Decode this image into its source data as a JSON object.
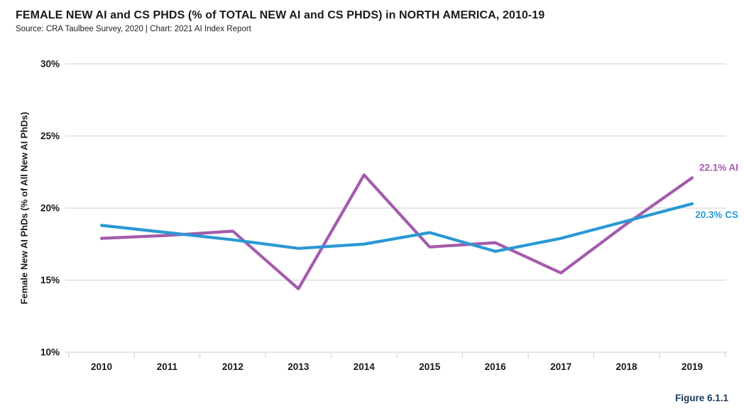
{
  "header": {
    "title": "FEMALE NEW AI and CS PHDS (% of TOTAL NEW AI and CS PHDS) in NORTH AMERICA, 2010-19",
    "source": "Source: CRA Taulbee Survey, 2020 | Chart: 2021 AI Index Report"
  },
  "footer": {
    "figure_label": "Figure 6.1.1"
  },
  "colors": {
    "ai_line": "#A45BAC",
    "cs_line": "#2B98D4",
    "grid": "#D8D8D8",
    "tick": "#D8D8D8",
    "axis_text": "#1A1A1A",
    "figure_label": "#1B3A5C",
    "background": "#FFFFFF"
  },
  "chart_data": {
    "type": "line",
    "title": "FEMALE NEW AI and CS PHDS (% of TOTAL NEW AI and CS PHDS) in NORTH AMERICA, 2010-19",
    "xlabel": "",
    "ylabel": "Female New AI PhDs (% of All New AI PhDs)",
    "x": [
      2010,
      2011,
      2012,
      2013,
      2014,
      2015,
      2016,
      2017,
      2018,
      2019
    ],
    "ylim": [
      10,
      30
    ],
    "yticks": [
      10,
      15,
      20,
      25,
      30
    ],
    "ytick_labels": [
      "10%",
      "15%",
      "20%",
      "25%",
      "30%"
    ],
    "grid": "horizontal",
    "legend_position": "line-end-labels",
    "series": [
      {
        "name": "AI",
        "color": "#A45BAC",
        "values": [
          17.9,
          18.1,
          18.4,
          14.4,
          22.3,
          17.3,
          17.6,
          15.5,
          18.9,
          22.1
        ],
        "end_label": "22.1% AI"
      },
      {
        "name": "CS",
        "color": "#2B98D4",
        "values": [
          18.8,
          18.3,
          17.8,
          17.2,
          17.5,
          18.3,
          17.0,
          17.9,
          19.1,
          20.3
        ],
        "end_label": "20.3% CS"
      }
    ]
  }
}
